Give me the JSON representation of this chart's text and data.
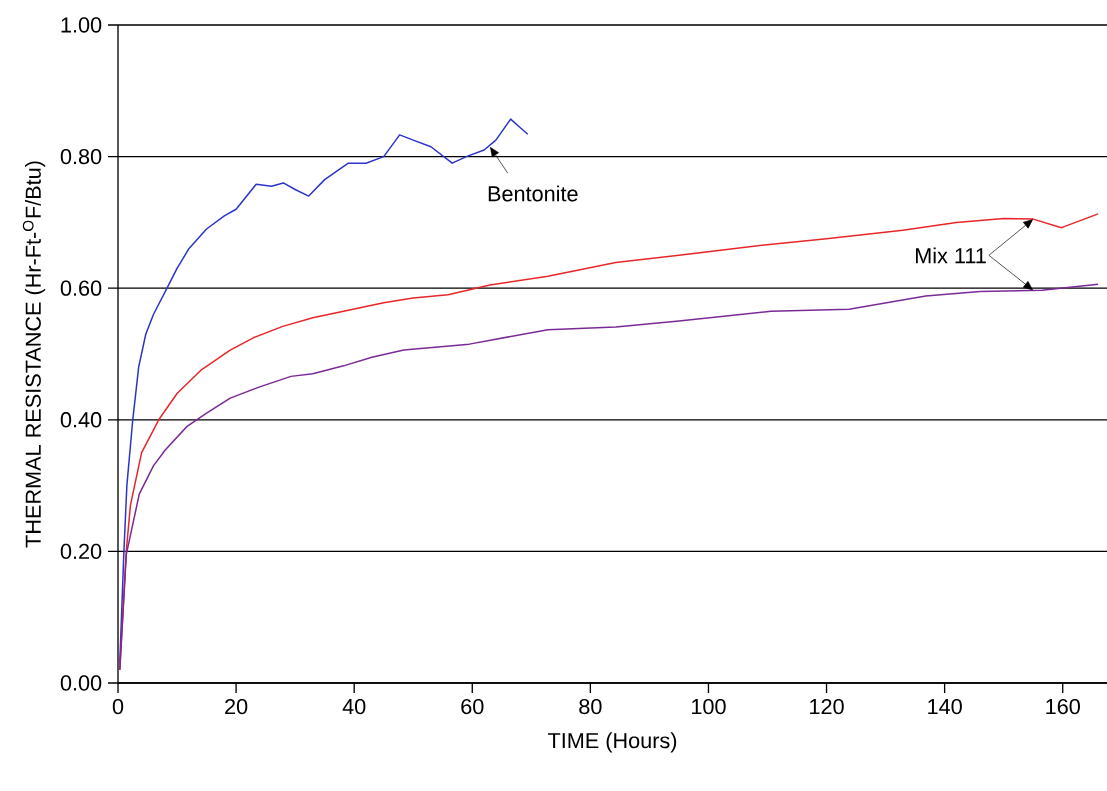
{
  "chart_data": {
    "type": "line",
    "xlabel": "TIME (Hours)",
    "ylabel": "THERMAL RESISTANCE (Hr-Ft-$^{O}$F/Btu)",
    "xlim": [
      0,
      167.5
    ],
    "ylim": [
      0,
      1.0
    ],
    "xticks": [
      0,
      20,
      40,
      60,
      80,
      100,
      120,
      140,
      160
    ],
    "yticks": [
      {
        "value": 0,
        "label": "0.00"
      },
      {
        "value": 0.2,
        "label": "0.20"
      },
      {
        "value": 0.4,
        "label": "0.40"
      },
      {
        "value": 0.6,
        "label": "0.60"
      },
      {
        "value": 0.8,
        "label": "0.80"
      },
      {
        "value": 1.0,
        "label": "1.00"
      }
    ],
    "grid": "y",
    "marker": "none",
    "line_style": "solid",
    "series": [
      {
        "color": "#2b35c8",
        "x": [
          0.3,
          1,
          1.5,
          2.5,
          3.5,
          4.7,
          6,
          8.3,
          10,
          12,
          15,
          18,
          20,
          23.4,
          26,
          28,
          30,
          32.3,
          35,
          39,
          42,
          45,
          47.7,
          50,
          53,
          56.6,
          59,
          62,
          64,
          66.5,
          68,
          69.4
        ],
        "values": [
          0.03,
          0.2,
          0.3,
          0.4,
          0.48,
          0.53,
          0.56,
          0.6,
          0.63,
          0.66,
          0.69,
          0.71,
          0.72,
          0.758,
          0.755,
          0.76,
          0.75,
          0.74,
          0.765,
          0.79,
          0.79,
          0.8,
          0.833,
          0.825,
          0.815,
          0.79,
          0.8,
          0.81,
          0.825,
          0.857,
          0.845,
          0.834
        ]
      },
      {
        "color": "#e8262a",
        "x": [
          0.3,
          1.4,
          2.1,
          4,
          6.9,
          10,
          14,
          19,
          23,
          27.9,
          33,
          38.2,
          45,
          50,
          55.9,
          63,
          72.8,
          84.3,
          95,
          109.9,
          120,
          132.9,
          142,
          150,
          155,
          159.8,
          166
        ],
        "values": [
          0.02,
          0.2,
          0.27,
          0.35,
          0.4,
          0.44,
          0.475,
          0.506,
          0.525,
          0.542,
          0.555,
          0.565,
          0.578,
          0.585,
          0.59,
          0.605,
          0.618,
          0.639,
          0.65,
          0.666,
          0.675,
          0.688,
          0.7,
          0.706,
          0.705,
          0.692,
          0.713
        ]
      },
      {
        "color": "#7a2a96",
        "x": [
          0.3,
          1.4,
          3.6,
          6,
          8,
          11.7,
          15,
          19,
          24,
          29.3,
          33,
          38.2,
          43,
          48.4,
          59.5,
          72.8,
          84.3,
          95,
          110.6,
          123.8,
          136.8,
          146,
          156.5,
          166
        ],
        "values": [
          0.02,
          0.195,
          0.287,
          0.33,
          0.354,
          0.39,
          0.41,
          0.433,
          0.45,
          0.466,
          0.47,
          0.482,
          0.495,
          0.506,
          0.515,
          0.537,
          0.541,
          0.55,
          0.565,
          0.568,
          0.588,
          0.595,
          0.597,
          0.606
        ]
      }
    ],
    "annotations": [
      {
        "text": "Bentonite",
        "x": 63,
        "y": 0.815
      },
      {
        "text": "Mix 111",
        "x": 155,
        "y": 0.705
      }
    ]
  }
}
